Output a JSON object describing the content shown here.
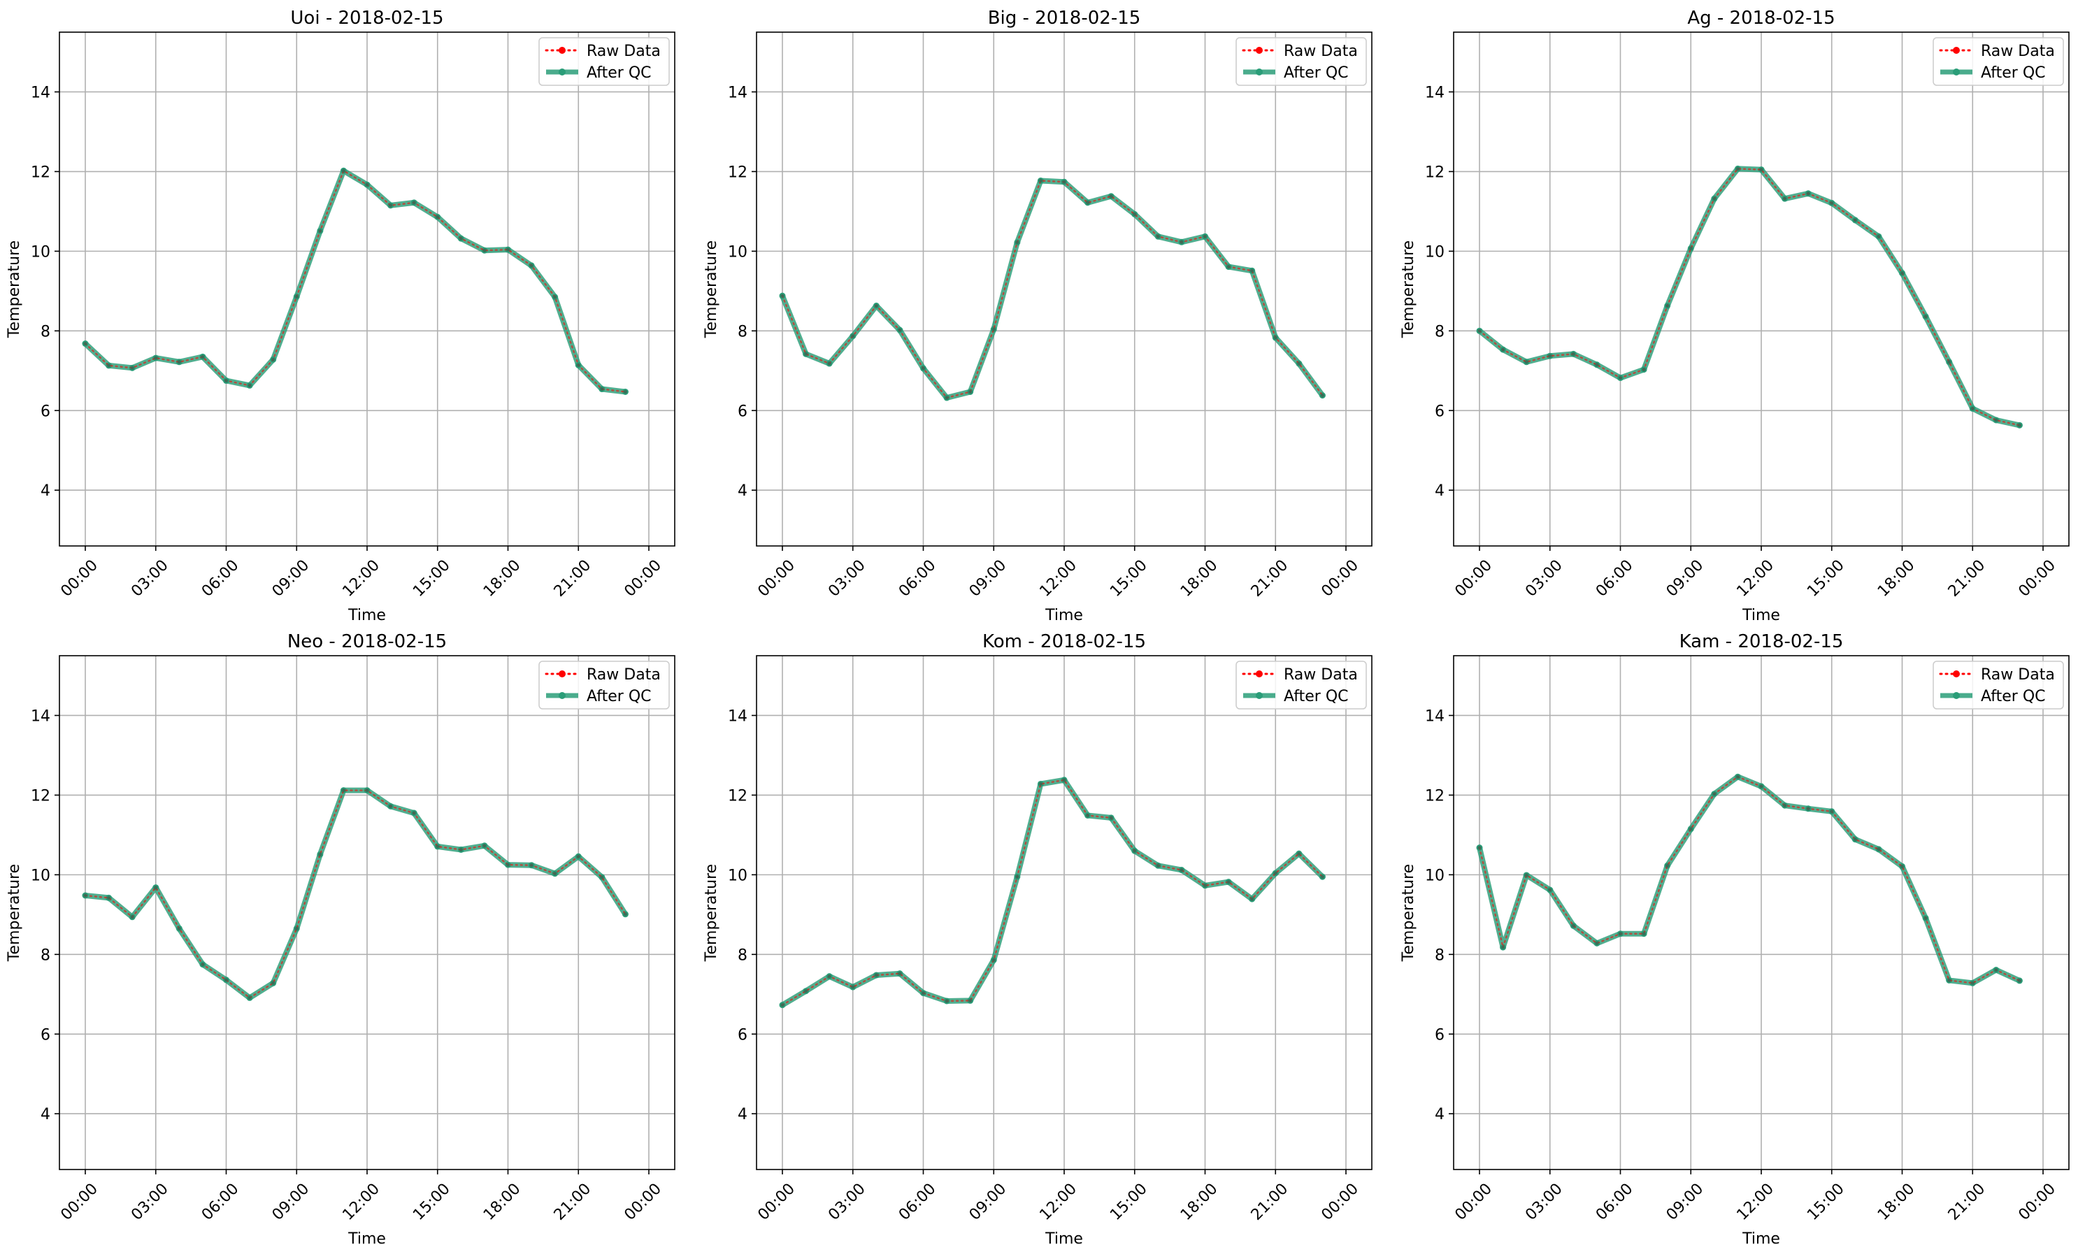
{
  "figure": {
    "background": "#ffffff",
    "grid_color": "#b0b0b0",
    "raw_color": "#ff0000",
    "qc_color": "#2a9d78"
  },
  "legend": {
    "raw_label": "Raw Data",
    "qc_label": "After QC",
    "placement": "top-right"
  },
  "chart_data": [
    {
      "type": "line",
      "title": "Uoi - 2018-02-15",
      "xlabel": "Time",
      "ylabel": "Temperature",
      "xticks": [
        "00:00",
        "03:00",
        "06:00",
        "09:00",
        "12:00",
        "15:00",
        "18:00",
        "21:00",
        "00:00"
      ],
      "yticks": [
        4,
        6,
        8,
        10,
        12,
        14
      ],
      "ylim": [
        2.6,
        15.5
      ],
      "grid": true,
      "x": [
        "00:00",
        "01:00",
        "02:00",
        "03:00",
        "04:00",
        "05:00",
        "06:00",
        "07:00",
        "08:00",
        "09:00",
        "10:00",
        "11:00",
        "12:00",
        "13:00",
        "14:00",
        "15:00",
        "16:00",
        "17:00",
        "18:00",
        "19:00",
        "20:00",
        "21:00",
        "22:00",
        "23:00"
      ],
      "series": [
        {
          "name": "Raw Data",
          "values": [
            7.68,
            7.13,
            7.07,
            7.32,
            7.22,
            7.35,
            6.75,
            6.63,
            7.28,
            8.86,
            10.51,
            12.02,
            11.67,
            11.15,
            11.22,
            10.86,
            10.32,
            10.02,
            10.04,
            9.64,
            8.85,
            7.14,
            6.54,
            6.47
          ]
        },
        {
          "name": "After QC",
          "values": [
            7.68,
            7.13,
            7.07,
            7.32,
            7.22,
            7.35,
            6.75,
            6.63,
            7.28,
            8.86,
            10.51,
            12.02,
            11.67,
            11.15,
            11.22,
            10.86,
            10.32,
            10.02,
            10.04,
            9.64,
            8.85,
            7.14,
            6.54,
            6.47
          ]
        }
      ]
    },
    {
      "type": "line",
      "title": "Big - 2018-02-15",
      "xlabel": "Time",
      "ylabel": "Temperature",
      "xticks": [
        "00:00",
        "03:00",
        "06:00",
        "09:00",
        "12:00",
        "15:00",
        "18:00",
        "21:00",
        "00:00"
      ],
      "yticks": [
        4,
        6,
        8,
        10,
        12,
        14
      ],
      "ylim": [
        2.6,
        15.5
      ],
      "grid": true,
      "x": [
        "00:00",
        "01:00",
        "02:00",
        "03:00",
        "04:00",
        "05:00",
        "06:00",
        "07:00",
        "08:00",
        "09:00",
        "10:00",
        "11:00",
        "12:00",
        "13:00",
        "14:00",
        "15:00",
        "16:00",
        "17:00",
        "18:00",
        "19:00",
        "20:00",
        "21:00",
        "22:00",
        "23:00"
      ],
      "series": [
        {
          "name": "Raw Data",
          "values": [
            8.88,
            7.42,
            7.18,
            7.87,
            8.63,
            8.02,
            7.06,
            6.32,
            6.47,
            8.04,
            10.22,
            11.77,
            11.74,
            11.22,
            11.38,
            10.93,
            10.37,
            10.23,
            10.37,
            9.61,
            9.51,
            7.83,
            7.18,
            6.38
          ]
        },
        {
          "name": "After QC",
          "values": [
            8.88,
            7.42,
            7.18,
            7.87,
            8.63,
            8.02,
            7.06,
            6.32,
            6.47,
            8.04,
            10.22,
            11.77,
            11.74,
            11.22,
            11.38,
            10.93,
            10.37,
            10.23,
            10.37,
            9.61,
            9.51,
            7.83,
            7.18,
            6.38
          ]
        }
      ]
    },
    {
      "type": "line",
      "title": "Ag - 2018-02-15",
      "xlabel": "Time",
      "ylabel": "Temperature",
      "xticks": [
        "00:00",
        "03:00",
        "06:00",
        "09:00",
        "12:00",
        "15:00",
        "18:00",
        "21:00",
        "00:00"
      ],
      "yticks": [
        4,
        6,
        8,
        10,
        12,
        14
      ],
      "ylim": [
        2.6,
        15.5
      ],
      "grid": true,
      "x": [
        "00:00",
        "01:00",
        "02:00",
        "03:00",
        "04:00",
        "05:00",
        "06:00",
        "07:00",
        "08:00",
        "09:00",
        "10:00",
        "11:00",
        "12:00",
        "13:00",
        "14:00",
        "15:00",
        "16:00",
        "17:00",
        "18:00",
        "19:00",
        "20:00",
        "21:00",
        "22:00",
        "23:00"
      ],
      "series": [
        {
          "name": "Raw Data",
          "values": [
            8.0,
            7.53,
            7.22,
            7.37,
            7.42,
            7.15,
            6.82,
            7.03,
            8.63,
            10.07,
            11.32,
            12.07,
            12.05,
            11.32,
            11.45,
            11.21,
            10.78,
            10.37,
            9.45,
            8.36,
            7.22,
            6.05,
            5.76,
            5.63
          ]
        },
        {
          "name": "After QC",
          "values": [
            8.0,
            7.53,
            7.22,
            7.37,
            7.42,
            7.15,
            6.82,
            7.03,
            8.63,
            10.07,
            11.32,
            12.07,
            12.05,
            11.32,
            11.45,
            11.21,
            10.78,
            10.37,
            9.45,
            8.36,
            7.22,
            6.05,
            5.76,
            5.63
          ]
        }
      ]
    },
    {
      "type": "line",
      "title": "Neo - 2018-02-15",
      "xlabel": "Time",
      "ylabel": "Temperature",
      "xticks": [
        "00:00",
        "03:00",
        "06:00",
        "09:00",
        "12:00",
        "15:00",
        "18:00",
        "21:00",
        "00:00"
      ],
      "yticks": [
        4,
        6,
        8,
        10,
        12,
        14
      ],
      "ylim": [
        2.6,
        15.5
      ],
      "grid": true,
      "x": [
        "00:00",
        "01:00",
        "02:00",
        "03:00",
        "04:00",
        "05:00",
        "06:00",
        "07:00",
        "08:00",
        "09:00",
        "10:00",
        "11:00",
        "12:00",
        "13:00",
        "14:00",
        "15:00",
        "16:00",
        "17:00",
        "18:00",
        "19:00",
        "20:00",
        "21:00",
        "22:00",
        "23:00"
      ],
      "series": [
        {
          "name": "Raw Data",
          "values": [
            9.48,
            9.42,
            8.94,
            9.68,
            8.65,
            7.75,
            7.36,
            6.91,
            7.28,
            8.65,
            10.51,
            12.12,
            12.12,
            11.72,
            11.55,
            10.71,
            10.63,
            10.73,
            10.25,
            10.24,
            10.03,
            10.46,
            9.94,
            9.01
          ]
        },
        {
          "name": "After QC",
          "values": [
            9.48,
            9.42,
            8.94,
            9.68,
            8.65,
            7.75,
            7.36,
            6.91,
            7.28,
            8.65,
            10.51,
            12.12,
            12.12,
            11.72,
            11.55,
            10.71,
            10.63,
            10.73,
            10.25,
            10.24,
            10.03,
            10.46,
            9.94,
            9.01
          ]
        }
      ]
    },
    {
      "type": "line",
      "title": "Kom - 2018-02-15",
      "xlabel": "Time",
      "ylabel": "Temperature",
      "xticks": [
        "00:00",
        "03:00",
        "06:00",
        "09:00",
        "12:00",
        "15:00",
        "18:00",
        "21:00",
        "00:00"
      ],
      "yticks": [
        4,
        6,
        8,
        10,
        12,
        14
      ],
      "ylim": [
        2.6,
        15.5
      ],
      "grid": true,
      "x": [
        "00:00",
        "01:00",
        "02:00",
        "03:00",
        "04:00",
        "05:00",
        "06:00",
        "07:00",
        "08:00",
        "09:00",
        "10:00",
        "11:00",
        "12:00",
        "13:00",
        "14:00",
        "15:00",
        "16:00",
        "17:00",
        "18:00",
        "19:00",
        "20:00",
        "21:00",
        "22:00",
        "23:00"
      ],
      "series": [
        {
          "name": "Raw Data",
          "values": [
            6.73,
            7.08,
            7.45,
            7.18,
            7.48,
            7.52,
            7.03,
            6.83,
            6.84,
            7.86,
            9.95,
            12.28,
            12.38,
            11.49,
            11.43,
            10.6,
            10.23,
            10.12,
            9.73,
            9.82,
            9.39,
            10.04,
            10.53,
            9.95
          ]
        },
        {
          "name": "After QC",
          "values": [
            6.73,
            7.08,
            7.45,
            7.18,
            7.48,
            7.52,
            7.03,
            6.83,
            6.84,
            7.86,
            9.95,
            12.28,
            12.38,
            11.49,
            11.43,
            10.6,
            10.23,
            10.12,
            9.73,
            9.82,
            9.39,
            10.04,
            10.53,
            9.95
          ]
        }
      ]
    },
    {
      "type": "line",
      "title": "Kam - 2018-02-15",
      "xlabel": "Time",
      "ylabel": "Temperature",
      "xticks": [
        "00:00",
        "03:00",
        "06:00",
        "09:00",
        "12:00",
        "15:00",
        "18:00",
        "21:00",
        "00:00"
      ],
      "yticks": [
        4,
        6,
        8,
        10,
        12,
        14
      ],
      "ylim": [
        2.6,
        15.5
      ],
      "grid": true,
      "x": [
        "00:00",
        "01:00",
        "02:00",
        "03:00",
        "04:00",
        "05:00",
        "06:00",
        "07:00",
        "08:00",
        "09:00",
        "10:00",
        "11:00",
        "12:00",
        "13:00",
        "14:00",
        "15:00",
        "16:00",
        "17:00",
        "18:00",
        "19:00",
        "20:00",
        "21:00",
        "22:00",
        "23:00"
      ],
      "series": [
        {
          "name": "Raw Data",
          "values": [
            10.68,
            8.18,
            9.99,
            9.62,
            8.72,
            8.28,
            8.52,
            8.52,
            10.23,
            11.15,
            12.03,
            12.46,
            12.22,
            11.74,
            11.66,
            11.59,
            10.89,
            10.64,
            10.21,
            8.91,
            7.35,
            7.28,
            7.61,
            7.34
          ]
        },
        {
          "name": "After QC",
          "values": [
            10.68,
            8.18,
            9.99,
            9.62,
            8.72,
            8.28,
            8.52,
            8.52,
            10.23,
            11.15,
            12.03,
            12.46,
            12.22,
            11.74,
            11.66,
            11.59,
            10.89,
            10.64,
            10.21,
            8.91,
            7.35,
            7.28,
            7.61,
            7.34
          ]
        }
      ]
    }
  ]
}
